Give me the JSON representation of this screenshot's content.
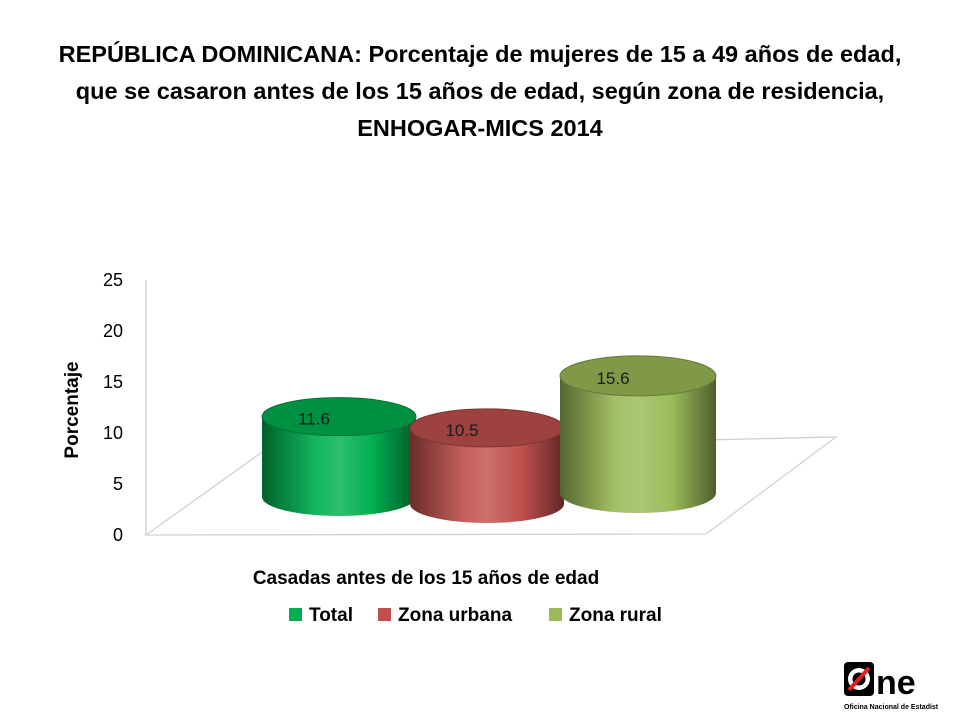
{
  "page": {
    "title": "REPÚBLICA DOMINICANA: Porcentaje de mujeres de 15 a 49 años de edad, que se casaron antes de los 15 años de edad, según zona de residencia, ENHOGAR-MICS 2014"
  },
  "chart_data": {
    "type": "bar",
    "title": "REPÚBLICA DOMINICANA: Porcentaje de mujeres de 15 a 49 años de edad, que se casaron antes de los 15 años de edad, según zona de residencia, ENHOGAR-MICS 2014",
    "categories": [
      "Casadas antes de los 15 años de edad"
    ],
    "series": [
      {
        "name": "Total",
        "values": [
          11.6
        ],
        "color": "#00b050"
      },
      {
        "name": "Zona urbana",
        "values": [
          10.5
        ],
        "color": "#c0504d"
      },
      {
        "name": "Zona rural",
        "values": [
          15.6
        ],
        "color": "#9bbb59"
      }
    ],
    "xlabel": "Casadas antes de los 15 años de edad",
    "ylabel": "Porcentaje",
    "ylim": [
      0,
      25
    ],
    "yticks": [
      0,
      5,
      10,
      15,
      20,
      25
    ],
    "data_labels": [
      "11.6",
      "10.5",
      "15.6"
    ],
    "grid": false,
    "legend": "bottom",
    "style": "3d-cylinder"
  },
  "logo": {
    "text": "One",
    "subtitle": "Oficina Nacional de Estadística"
  }
}
